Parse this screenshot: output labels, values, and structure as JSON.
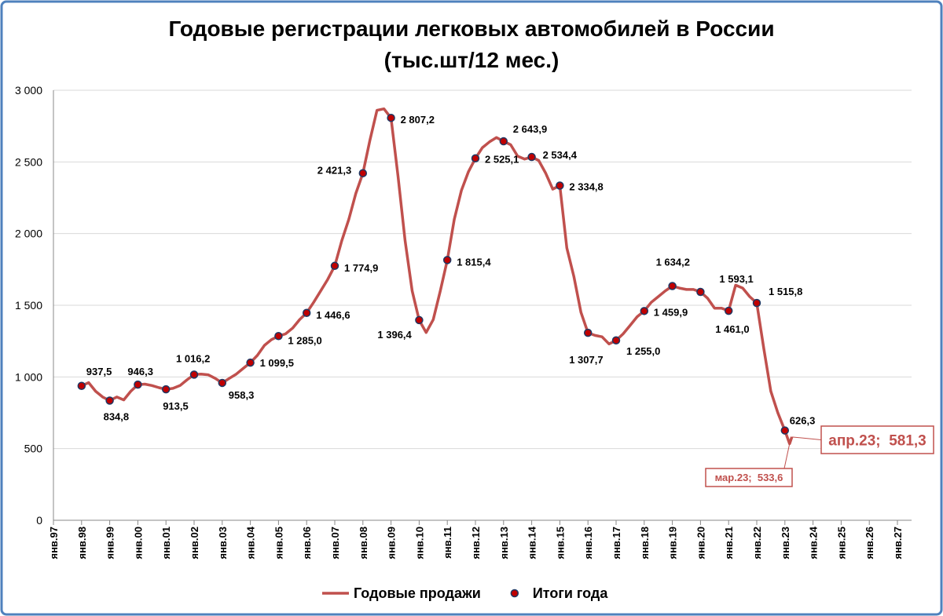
{
  "chart_data": {
    "type": "line",
    "title": "Годовые регистрации легковых автомобилей в России",
    "subtitle": "(тыс.шт/12 мес.)",
    "categories": [
      "янв.97",
      "янв.98",
      "янв.99",
      "янв.00",
      "янв.01",
      "янв.02",
      "янв.03",
      "янв.04",
      "янв.05",
      "янв.06",
      "янв.07",
      "янв.08",
      "янв.09",
      "янв.10",
      "янв.11",
      "янв.12",
      "янв.13",
      "янв.14",
      "янв.15",
      "янв.16",
      "янв.17",
      "янв.18",
      "янв.19",
      "янв.20",
      "янв.21",
      "янв.22",
      "янв.23",
      "янв.24",
      "янв.25",
      "янв.26",
      "янв.27"
    ],
    "ylim": [
      0,
      3000
    ],
    "yticks": [
      0,
      500,
      {
        "value": 1000,
        "label": "1 000"
      },
      {
        "value": 1500,
        "label": "1 500"
      },
      {
        "value": 2000,
        "label": "2 000"
      },
      {
        "value": 2500,
        "label": "2 500"
      },
      {
        "value": 3000,
        "label": "3 000"
      }
    ],
    "grid": true,
    "series": [
      {
        "name": "Годовые продажи",
        "color": "#c0504d",
        "x": [
          "янв.98",
          "апр.98",
          "июл.98",
          "окт.98",
          "янв.99",
          "апр.99",
          "июл.99",
          "окт.99",
          "янв.00",
          "апр.00",
          "июл.00",
          "окт.00",
          "янв.01",
          "апр.01",
          "июл.01",
          "окт.01",
          "янв.02",
          "апр.02",
          "июл.02",
          "окт.02",
          "янв.03",
          "апр.03",
          "июл.03",
          "окт.03",
          "янв.04",
          "апр.04",
          "июл.04",
          "окт.04",
          "янв.05",
          "апр.05",
          "июл.05",
          "окт.05",
          "янв.06",
          "апр.06",
          "июл.06",
          "окт.06",
          "янв.07",
          "апр.07",
          "июл.07",
          "окт.07",
          "янв.08",
          "апр.08",
          "июл.08",
          "окт.08",
          "янв.09",
          "апр.09",
          "июл.09",
          "окт.09",
          "янв.10",
          "апр.10",
          "июл.10",
          "окт.10",
          "янв.11",
          "апр.11",
          "июл.11",
          "окт.11",
          "янв.12",
          "апр.12",
          "июл.12",
          "окт.12",
          "янв.13",
          "апр.13",
          "июл.13",
          "окт.13",
          "янв.14",
          "апр.14",
          "июл.14",
          "окт.14",
          "янв.15",
          "апр.15",
          "июл.15",
          "окт.15",
          "янв.16",
          "апр.16",
          "июл.16",
          "окт.16",
          "янв.17",
          "апр.17",
          "июл.17",
          "окт.17",
          "янв.18",
          "апр.18",
          "июл.18",
          "окт.18",
          "янв.19",
          "апр.19",
          "июл.19",
          "окт.19",
          "янв.20",
          "апр.20",
          "июл.20",
          "окт.20",
          "янв.21",
          "апр.21",
          "июл.21",
          "окт.21",
          "янв.22",
          "апр.22",
          "июл.22",
          "окт.22",
          "янв.23",
          "мар.23",
          "апр.23"
        ],
        "values": [
          937,
          960,
          900,
          860,
          835,
          860,
          840,
          900,
          946,
          950,
          940,
          925,
          913,
          920,
          940,
          980,
          1016,
          1020,
          1015,
          990,
          958,
          990,
          1020,
          1060,
          1100,
          1150,
          1220,
          1260,
          1285,
          1300,
          1340,
          1400,
          1447,
          1520,
          1600,
          1680,
          1775,
          1950,
          2100,
          2280,
          2421,
          2650,
          2860,
          2870,
          2807,
          2400,
          1950,
          1600,
          1396,
          1310,
          1400,
          1600,
          1815,
          2100,
          2300,
          2430,
          2525,
          2600,
          2640,
          2670,
          2644,
          2620,
          2540,
          2520,
          2534,
          2510,
          2420,
          2310,
          2335,
          1900,
          1700,
          1450,
          1308,
          1290,
          1280,
          1230,
          1255,
          1300,
          1360,
          1420,
          1460,
          1520,
          1560,
          1600,
          1634,
          1620,
          1610,
          1610,
          1593,
          1550,
          1480,
          1480,
          1461,
          1640,
          1620,
          1560,
          1516,
          1200,
          900,
          750,
          626,
          533.6,
          581.3
        ]
      },
      {
        "name": "Итоги года",
        "type": "scatter",
        "color": "#c00000",
        "edgecolor": "#1f3864",
        "x": [
          "янв.98",
          "янв.99",
          "янв.00",
          "янв.01",
          "янв.02",
          "янв.03",
          "янв.04",
          "янв.05",
          "янв.06",
          "янв.07",
          "янв.08",
          "янв.09",
          "янв.10",
          "янв.11",
          "янв.12",
          "янв.13",
          "янв.14",
          "янв.15",
          "янв.16",
          "янв.17",
          "янв.18",
          "янв.19",
          "янв.20",
          "янв.21",
          "янв.22",
          "янв.23"
        ],
        "values": [
          937.5,
          834.8,
          946.3,
          913.5,
          1016.2,
          958.3,
          1099.5,
          1285.0,
          1446.6,
          1774.9,
          2421.3,
          2807.2,
          1396.4,
          1815.4,
          2525.1,
          2643.9,
          2534.4,
          2334.8,
          1307.7,
          1255.0,
          1459.9,
          1634.2,
          1593.1,
          1461.0,
          1515.8,
          626.3
        ],
        "value_labels": [
          "937,5",
          "834,8",
          "946,3",
          "913,5",
          "1 016,2",
          "958,3",
          "1 099,5",
          "1 285,0",
          "1 446,6",
          "1 774,9",
          "2 421,3",
          "2 807,2",
          "1 396,4",
          "1 815,4",
          "2 525,1",
          "2 643,9",
          "2 534,4",
          "2 334,8",
          "1 307,7",
          "1 255,0",
          "1 459,9",
          "1 634,2",
          "1 593,1",
          "1 461,0",
          "1 515,8",
          "626,3"
        ]
      }
    ],
    "annotations": [
      {
        "x": "апр.23",
        "value": 581.3,
        "label": "апр.23;  581,3"
      },
      {
        "x": "мар.23",
        "value": 533.6,
        "label": "мар.23;  533,6"
      }
    ],
    "legend": "bottom"
  }
}
